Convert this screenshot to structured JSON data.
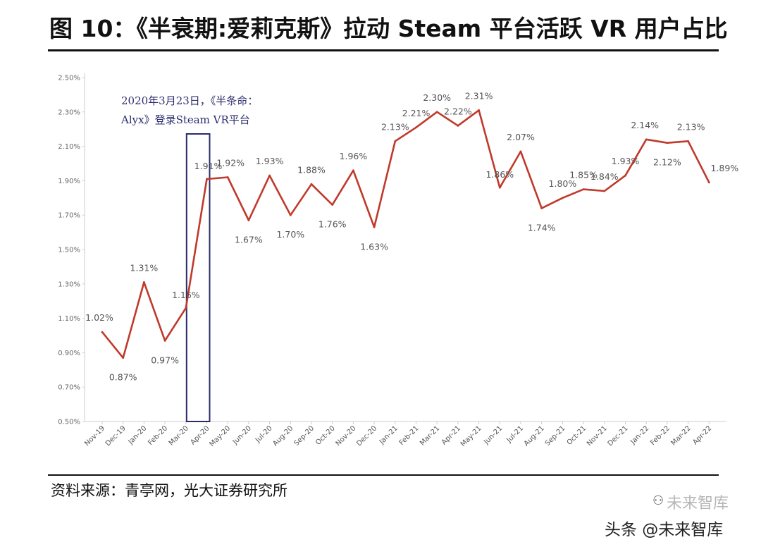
{
  "header": {
    "title": "图 10：《半衰期:爱莉克斯》拉动 Steam 平台活跃 VR 用户占比"
  },
  "footer": {
    "source": "资料来源：青亭网，光大证券研究所",
    "watermark": "头条 @未来智库",
    "watermark_faded": "未来智库"
  },
  "colors": {
    "line": "#c0392b",
    "axis": "#cccccc",
    "box": "#2b2b6b"
  },
  "chart_data": {
    "type": "line",
    "title": "",
    "xlabel": "",
    "ylabel": "",
    "ylim": [
      0.5,
      2.5
    ],
    "yticks": [
      0.5,
      0.7,
      0.9,
      1.1,
      1.3,
      1.5,
      1.7,
      1.9,
      2.1,
      2.3,
      2.5
    ],
    "ytick_labels": [
      "0.50%",
      "0.70%",
      "0.90%",
      "1.10%",
      "1.30%",
      "1.50%",
      "1.70%",
      "1.90%",
      "2.10%",
      "2.30%",
      "2.50%"
    ],
    "categories": [
      "Nov-19",
      "Dec-19",
      "Jan-20",
      "Feb-20",
      "Mar-20",
      "Apr-20",
      "May-20",
      "Jun-20",
      "Jul-20",
      "Aug-20",
      "Sep-20",
      "Oct-20",
      "Nov-20",
      "Dec-20",
      "Jan-21",
      "Feb-21",
      "Mar-21",
      "Apr-21",
      "May-21",
      "Jun-21",
      "Jul-21",
      "Aug-21",
      "Sep-21",
      "Oct-21",
      "Nov-21",
      "Dec-21",
      "Jan-22",
      "Feb-22",
      "Mar-22",
      "Apr-22"
    ],
    "series": [
      {
        "name": "Steam平台活跃VR用户占比",
        "values": [
          1.02,
          0.87,
          1.31,
          0.97,
          1.16,
          1.91,
          1.92,
          1.67,
          1.93,
          1.7,
          1.88,
          1.76,
          1.96,
          1.63,
          2.13,
          2.21,
          2.3,
          2.22,
          2.31,
          1.86,
          2.07,
          1.74,
          1.8,
          1.85,
          1.84,
          1.93,
          2.14,
          2.12,
          2.13,
          1.89
        ],
        "labels": [
          "1.02%",
          "0.87%",
          "1.31%",
          "0.97%",
          "1.16%",
          "1.91%",
          "1.92%",
          "1.67%",
          "1.93%",
          "1.70%",
          "1.88%",
          "1.76%",
          "1.96%",
          "1.63%",
          "2.13%",
          "2.21%",
          "2.30%",
          "2.22%",
          "2.31%",
          "1.86%",
          "2.07%",
          "1.74%",
          "1.80%",
          "1.85%",
          "1.84%",
          "1.93%",
          "2.14%",
          "2.12%",
          "2.13%",
          "1.89%"
        ]
      }
    ],
    "annotation": {
      "line1": "2020年3月23日，《半条命：",
      "line2": "Alyx》登录Steam VR平台",
      "highlight_categories": [
        "Mar-20",
        "Apr-20"
      ]
    },
    "grid": false,
    "legend": "none"
  }
}
